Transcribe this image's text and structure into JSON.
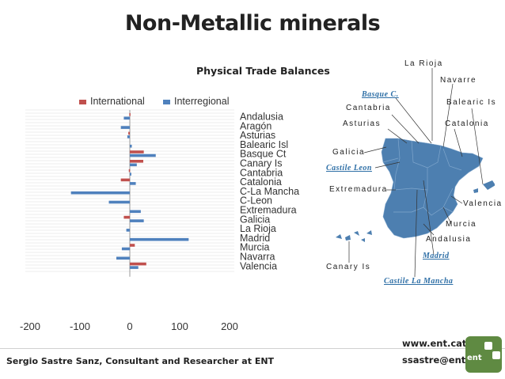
{
  "slide": {
    "title": "Non-Metallic minerals",
    "footer_author": "Sergio Sastre Sanz, Consultant and Researcher at ENT",
    "footer_site": "www.ent.cat",
    "footer_email": "ssastre@ent.cat",
    "logo_text": "ent"
  },
  "chart_data": {
    "type": "bar",
    "orientation": "horizontal",
    "title": "Physical Trade Balances",
    "xlabel": "",
    "ylabel": "",
    "xlim": [
      -200,
      200
    ],
    "x_ticks": [
      "-200",
      "-100",
      "0",
      "100",
      "200"
    ],
    "grid": true,
    "legend": "top",
    "categories": [
      "Andalusia",
      "Aragón",
      "Asturias",
      "Balearic Isl",
      "Basque Ct",
      "Canary Is",
      "Cantabria",
      "Catalonia",
      "C-La Mancha",
      "C-Leon",
      "Extremadura",
      "Galicia",
      "La Rioja",
      "Madrid",
      "Murcia",
      "Navarra",
      "Valencia"
    ],
    "series": [
      {
        "name": "International",
        "color": "#c0504d",
        "values": [
          -1,
          0,
          -3,
          0,
          28,
          27,
          -2,
          -18,
          0,
          0,
          0,
          -12,
          0,
          0,
          10,
          0,
          33
        ]
      },
      {
        "name": "Interregional",
        "color": "#4f81bd",
        "values": [
          -12,
          -18,
          -5,
          4,
          52,
          14,
          3,
          12,
          -118,
          -42,
          22,
          28,
          -7,
          118,
          -16,
          -27,
          17
        ]
      }
    ]
  },
  "map": {
    "labels": {
      "la_rioja": "La Rioja",
      "navarre": "Navarre",
      "basque": "Basque C.",
      "balearic": "Balearic Is",
      "cantabria": "Cantabria",
      "asturias": "Asturias",
      "catalonia": "Catalonia",
      "galicia": "Galicia",
      "castile_leon": "Castile Leon",
      "extremadura": "Extremadura",
      "valencia": "Valencia",
      "murcia": "Murcia",
      "andalusia": "Andalusia",
      "madrid": "Madrid",
      "canary": "Canary Is",
      "castile_la_mancha": "Castile La Mancha"
    }
  }
}
